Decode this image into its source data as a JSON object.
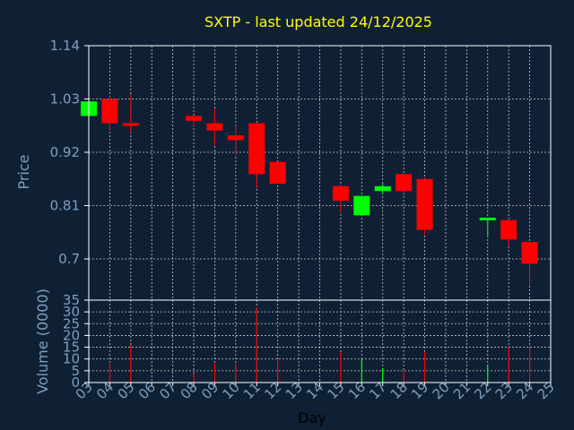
{
  "colors": {
    "background": "#0f2035",
    "up": "#00ff00",
    "down": "#ff0000",
    "text": "#7f9fbf",
    "title": "#ffff00",
    "frame": "#ffffff",
    "grid": "#c8c8c8"
  },
  "chart_data": [
    {
      "type": "candlestick",
      "title": "SXTP - last updated 24/12/2025",
      "ylabel": "Price",
      "ylim": [
        0.615,
        1.14
      ],
      "yticks": [
        "1.14",
        "1.03",
        "0.92",
        "0.81",
        "0.7"
      ],
      "ytick_values": [
        1.14,
        1.03,
        0.92,
        0.81,
        0.7
      ],
      "grid": true,
      "x_range": [
        3,
        25
      ],
      "candles": [
        {
          "day": 3,
          "open": 0.995,
          "high": 1.025,
          "low": 0.995,
          "close": 1.025
        },
        {
          "day": 4,
          "open": 1.03,
          "high": 1.035,
          "low": 0.965,
          "close": 0.98
        },
        {
          "day": 5,
          "open": 0.98,
          "high": 1.04,
          "low": 0.96,
          "close": 0.975
        },
        {
          "day": 8,
          "open": 0.995,
          "high": 0.995,
          "low": 0.975,
          "close": 0.985
        },
        {
          "day": 9,
          "open": 0.98,
          "high": 1.01,
          "low": 0.935,
          "close": 0.965
        },
        {
          "day": 10,
          "open": 0.955,
          "high": 0.975,
          "low": 0.915,
          "close": 0.945
        },
        {
          "day": 11,
          "open": 0.98,
          "high": 0.98,
          "low": 0.845,
          "close": 0.875
        },
        {
          "day": 12,
          "open": 0.9,
          "high": 0.9,
          "low": 0.855,
          "close": 0.855
        },
        {
          "day": 15,
          "open": 0.85,
          "high": 0.85,
          "low": 0.795,
          "close": 0.82
        },
        {
          "day": 16,
          "open": 0.79,
          "high": 0.83,
          "low": 0.79,
          "close": 0.83
        },
        {
          "day": 17,
          "open": 0.84,
          "high": 0.855,
          "low": 0.835,
          "close": 0.85
        },
        {
          "day": 18,
          "open": 0.875,
          "high": 0.875,
          "low": 0.835,
          "close": 0.84
        },
        {
          "day": 19,
          "open": 0.865,
          "high": 0.865,
          "low": 0.75,
          "close": 0.76
        },
        {
          "day": 22,
          "open": 0.78,
          "high": 0.785,
          "low": 0.745,
          "close": 0.785
        },
        {
          "day": 23,
          "open": 0.78,
          "high": 0.78,
          "low": 0.725,
          "close": 0.74
        },
        {
          "day": 24,
          "open": 0.735,
          "high": 0.735,
          "low": 0.645,
          "close": 0.69
        }
      ]
    },
    {
      "type": "bar",
      "ylabel": "Volume (0000)",
      "xlabel": "Day",
      "ylim": [
        0,
        35
      ],
      "yticks": [
        "35",
        "30",
        "25",
        "20",
        "15",
        "10",
        "5",
        "0"
      ],
      "ytick_values": [
        35,
        30,
        25,
        20,
        15,
        10,
        5,
        0
      ],
      "x_ticks": [
        "03",
        "04",
        "05",
        "06",
        "07",
        "08",
        "09",
        "10",
        "11",
        "12",
        "13",
        "14",
        "15",
        "16",
        "17",
        "18",
        "19",
        "20",
        "21",
        "22",
        "23",
        "24",
        "25"
      ],
      "x_tick_values": [
        3,
        4,
        5,
        6,
        7,
        8,
        9,
        10,
        11,
        12,
        13,
        14,
        15,
        16,
        17,
        18,
        19,
        20,
        21,
        22,
        23,
        24,
        25
      ],
      "bars": [
        {
          "day": 3,
          "value": 0,
          "dir": "up"
        },
        {
          "day": 4,
          "value": 8,
          "dir": "down"
        },
        {
          "day": 5,
          "value": 16,
          "dir": "down"
        },
        {
          "day": 8,
          "value": 4,
          "dir": "down"
        },
        {
          "day": 9,
          "value": 8,
          "dir": "down"
        },
        {
          "day": 10,
          "value": 8,
          "dir": "down"
        },
        {
          "day": 11,
          "value": 32,
          "dir": "down"
        },
        {
          "day": 12,
          "value": 10,
          "dir": "down"
        },
        {
          "day": 15,
          "value": 13,
          "dir": "down"
        },
        {
          "day": 16,
          "value": 10,
          "dir": "up"
        },
        {
          "day": 17,
          "value": 6,
          "dir": "up"
        },
        {
          "day": 18,
          "value": 5,
          "dir": "down"
        },
        {
          "day": 19,
          "value": 13,
          "dir": "down"
        },
        {
          "day": 22,
          "value": 7,
          "dir": "up"
        },
        {
          "day": 23,
          "value": 15,
          "dir": "down"
        },
        {
          "day": 24,
          "value": 15,
          "dir": "down"
        }
      ]
    }
  ]
}
